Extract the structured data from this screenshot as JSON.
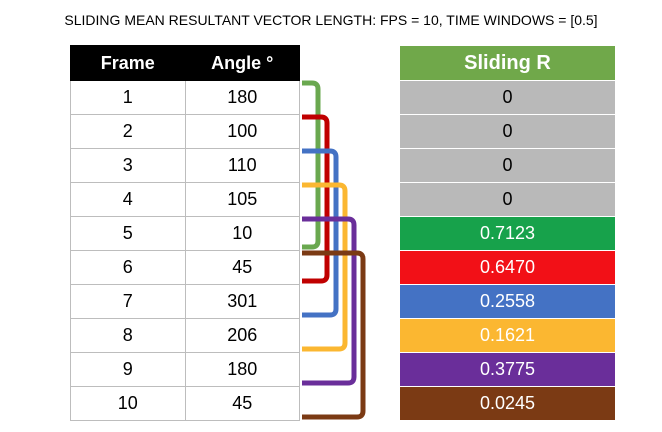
{
  "title": "SLIDING MEAN RESULTANT VECTOR LENGTH: FPS = 10, TIME WINDOWS = [0.5]",
  "table": {
    "col_frame": "Frame",
    "col_angle": "Angle °",
    "rows": [
      {
        "frame": "1",
        "angle": "180"
      },
      {
        "frame": "2",
        "angle": "100"
      },
      {
        "frame": "3",
        "angle": "110"
      },
      {
        "frame": "4",
        "angle": "105"
      },
      {
        "frame": "5",
        "angle": "10"
      },
      {
        "frame": "6",
        "angle": "45"
      },
      {
        "frame": "7",
        "angle": "301"
      },
      {
        "frame": "8",
        "angle": "206"
      },
      {
        "frame": "9",
        "angle": "180"
      },
      {
        "frame": "10",
        "angle": "45"
      }
    ]
  },
  "sliding": {
    "header": "Sliding R",
    "rows": [
      {
        "value": "0",
        "bg": "#b9b9b9",
        "fg": "#000000"
      },
      {
        "value": "0",
        "bg": "#b9b9b9",
        "fg": "#000000"
      },
      {
        "value": "0",
        "bg": "#b9b9b9",
        "fg": "#000000"
      },
      {
        "value": "0",
        "bg": "#b9b9b9",
        "fg": "#000000"
      },
      {
        "value": "0.7123",
        "bg": "#17a24b",
        "fg": "#ffffff"
      },
      {
        "value": "0.6470",
        "bg": "#f21017",
        "fg": "#ffffff"
      },
      {
        "value": "0.2558",
        "bg": "#4472c4",
        "fg": "#ffffff"
      },
      {
        "value": "0.1621",
        "bg": "#fbb731",
        "fg": "#ffffff"
      },
      {
        "value": "0.3775",
        "bg": "#6a2e9a",
        "fg": "#ffffff"
      },
      {
        "value": "0.0245",
        "bg": "#7b3a14",
        "fg": "#ffffff"
      }
    ]
  },
  "brackets": [
    {
      "start_frame": 1,
      "end_frame": 5,
      "color": "#6aa84f"
    },
    {
      "start_frame": 2,
      "end_frame": 6,
      "color": "#c00000"
    },
    {
      "start_frame": 3,
      "end_frame": 7,
      "color": "#4472c4"
    },
    {
      "start_frame": 4,
      "end_frame": 8,
      "color": "#fbb731"
    },
    {
      "start_frame": 5,
      "end_frame": 9,
      "color": "#6a2e9a"
    },
    {
      "start_frame": 6,
      "end_frame": 10,
      "color": "#7b3a14"
    }
  ]
}
